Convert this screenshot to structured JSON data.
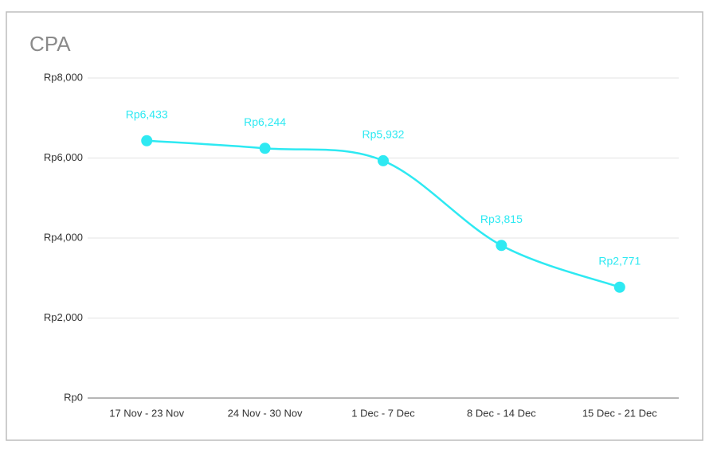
{
  "chart_data": {
    "type": "line",
    "title": "CPA",
    "categories": [
      "17 Nov - 23 Nov",
      "24 Nov - 30 Nov",
      "1 Dec - 7 Dec",
      "8 Dec - 14 Dec",
      "15 Dec - 21 Dec"
    ],
    "series": [
      {
        "name": "CPA",
        "color": "#2ee9f2",
        "values": [
          6433,
          6244,
          5932,
          3815,
          2771
        ],
        "value_labels": [
          "Rp6,433",
          "Rp6,244",
          "Rp5,932",
          "Rp3,815",
          "Rp2,771"
        ]
      }
    ],
    "ylim": [
      0,
      8000
    ],
    "yticks": [
      {
        "value": 0,
        "label": "Rp0"
      },
      {
        "value": 2000,
        "label": "Rp2,000"
      },
      {
        "value": 4000,
        "label": "Rp4,000"
      },
      {
        "value": 6000,
        "label": "Rp6,000"
      },
      {
        "value": 8000,
        "label": "Rp8,000"
      }
    ],
    "grid": true,
    "smooth": true
  }
}
